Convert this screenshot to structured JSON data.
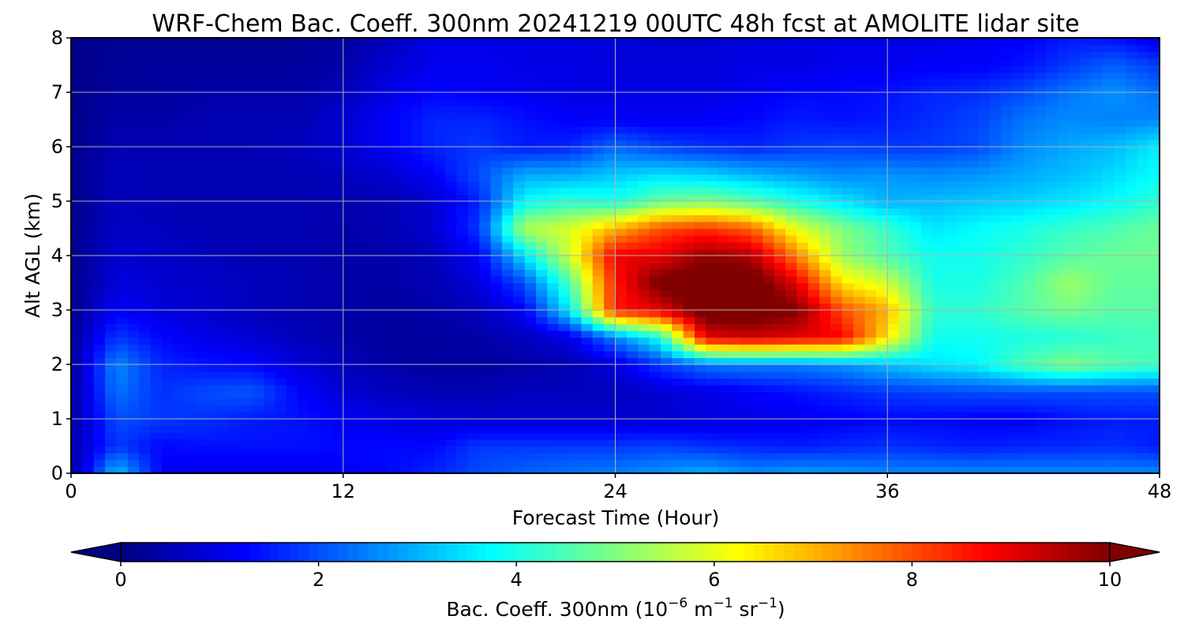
{
  "chart_data": {
    "type": "heatmap",
    "title": "WRF-Chem Bac. Coeff. 300nm  20241219 00UTC 48h fcst at AMOLITE lidar site",
    "xlabel": "Forecast Time (Hour)",
    "ylabel": "Alt AGL (km)",
    "xlim": [
      0,
      48
    ],
    "ylim": [
      0,
      8
    ],
    "x_ticks": [
      "0",
      "12",
      "24",
      "36",
      "48"
    ],
    "y_ticks": [
      "0",
      "1",
      "2",
      "3",
      "4",
      "5",
      "6",
      "7",
      "8"
    ],
    "grid": true,
    "colormap": "jet",
    "colorbar": {
      "label_main": "Bac. Coeff. 300nm  (10",
      "label_exp1": "−6",
      "label_mid": " m",
      "label_exp2": "−1",
      "label_mid2": " sr",
      "label_exp3": "−1",
      "label_end": ")",
      "range": [
        0,
        10
      ],
      "ticks": [
        "0",
        "2",
        "4",
        "6",
        "8",
        "10"
      ],
      "extend": "both",
      "orientation": "horizontal",
      "position": "bottom"
    },
    "x_hours": [
      0,
      2,
      4,
      6,
      8,
      10,
      12,
      14,
      16,
      18,
      20,
      22,
      24,
      26,
      28,
      30,
      32,
      34,
      36,
      38,
      40,
      42,
      44,
      46,
      48
    ],
    "y_km": [
      0,
      0.5,
      1,
      1.5,
      2,
      2.5,
      3,
      3.5,
      4,
      4.5,
      5,
      5.5,
      6,
      6.5,
      7,
      7.5,
      8
    ],
    "values_by_altitude": [
      [
        0.2,
        3.2,
        1.2,
        1.0,
        1.0,
        1.0,
        1.2,
        1.3,
        1.6,
        2.0,
        2.2,
        2.4,
        2.5,
        2.7,
        3.0,
        2.6,
        2.8,
        2.7,
        2.6,
        2.6,
        2.6,
        2.6,
        2.6,
        2.6,
        2.6
      ],
      [
        0.4,
        1.8,
        1.3,
        1.4,
        1.4,
        1.4,
        1.3,
        1.3,
        1.3,
        1.8,
        1.8,
        1.8,
        1.8,
        1.9,
        1.7,
        1.6,
        1.5,
        1.6,
        1.7,
        1.6,
        1.5,
        1.6,
        1.6,
        1.7,
        1.5
      ],
      [
        0.3,
        2.0,
        1.8,
        1.7,
        1.5,
        1.4,
        1.2,
        1.0,
        0.9,
        0.8,
        0.8,
        0.8,
        0.8,
        0.8,
        0.9,
        1.0,
        1.1,
        1.2,
        1.3,
        1.3,
        1.2,
        1.2,
        1.4,
        1.5,
        1.5
      ],
      [
        0.3,
        2.4,
        1.7,
        2.0,
        2.1,
        1.3,
        0.8,
        0.6,
        0.5,
        0.5,
        0.6,
        0.6,
        0.6,
        0.8,
        1.0,
        1.2,
        1.4,
        1.6,
        1.8,
        1.9,
        2.0,
        2.0,
        2.0,
        2.0,
        2.0
      ],
      [
        0.2,
        2.6,
        1.6,
        1.4,
        1.3,
        0.9,
        0.6,
        0.4,
        0.3,
        0.3,
        0.4,
        0.5,
        0.9,
        1.8,
        2.4,
        2.5,
        2.5,
        2.7,
        3.1,
        3.5,
        3.7,
        4.5,
        5.0,
        4.6,
        4.4
      ],
      [
        0.2,
        1.8,
        1.3,
        1.0,
        0.8,
        0.6,
        0.4,
        0.3,
        0.3,
        0.4,
        0.6,
        1.0,
        2.5,
        4.0,
        9.0,
        9.2,
        9.0,
        8.8,
        6.5,
        3.9,
        3.9,
        4.0,
        4.1,
        4.3,
        4.4
      ],
      [
        0.1,
        1.2,
        0.9,
        0.8,
        0.6,
        0.5,
        0.4,
        0.3,
        0.4,
        0.6,
        1.2,
        3.6,
        8.5,
        9.0,
        10.5,
        10.5,
        10.0,
        8.0,
        7.0,
        4.2,
        4.2,
        4.6,
        4.9,
        4.6,
        4.6
      ],
      [
        0.1,
        0.9,
        0.8,
        0.7,
        0.6,
        0.5,
        0.4,
        0.4,
        0.5,
        0.9,
        2.0,
        4.5,
        8.5,
        10.2,
        10.5,
        10.5,
        9.0,
        6.5,
        5.8,
        4.0,
        4.0,
        4.5,
        5.3,
        4.7,
        4.7
      ],
      [
        0.1,
        0.8,
        0.7,
        0.6,
        0.5,
        0.5,
        0.4,
        0.4,
        0.6,
        1.2,
        3.5,
        5.8,
        8.9,
        9.0,
        9.8,
        9.5,
        7.5,
        5.3,
        4.5,
        3.9,
        3.9,
        4.2,
        4.6,
        4.8,
        4.8
      ],
      [
        0.1,
        0.7,
        0.6,
        0.5,
        0.5,
        0.5,
        0.4,
        0.5,
        0.8,
        1.8,
        5.5,
        5.9,
        7.0,
        8.0,
        8.3,
        7.8,
        6.0,
        5.0,
        4.3,
        3.5,
        3.8,
        4.0,
        4.3,
        4.5,
        4.8
      ],
      [
        0.1,
        0.6,
        0.5,
        0.5,
        0.5,
        0.5,
        0.5,
        0.5,
        0.8,
        1.6,
        3.8,
        4.2,
        4.0,
        4.8,
        5.0,
        4.6,
        4.0,
        3.5,
        3.0,
        3.1,
        3.2,
        3.3,
        3.5,
        3.8,
        4.2
      ],
      [
        0.1,
        0.6,
        0.5,
        0.5,
        0.5,
        0.5,
        0.6,
        0.8,
        1.2,
        2.0,
        2.9,
        2.9,
        3.2,
        3.4,
        3.3,
        3.0,
        2.8,
        2.6,
        2.7,
        2.6,
        2.7,
        2.9,
        3.1,
        3.4,
        3.8
      ],
      [
        0.1,
        0.5,
        0.5,
        0.5,
        0.5,
        0.6,
        0.8,
        1.2,
        1.6,
        1.8,
        1.5,
        1.6,
        2.3,
        1.9,
        1.7,
        1.6,
        1.8,
        1.9,
        1.8,
        1.8,
        2.0,
        2.6,
        2.9,
        3.1,
        3.6
      ],
      [
        0.1,
        0.4,
        0.4,
        0.5,
        0.5,
        0.5,
        0.8,
        1.2,
        1.6,
        1.6,
        1.4,
        1.2,
        1.2,
        1.1,
        1.2,
        1.3,
        1.5,
        1.4,
        1.5,
        1.7,
        1.9,
        2.4,
        2.6,
        2.5,
        2.6
      ],
      [
        0.1,
        0.3,
        0.3,
        0.4,
        0.4,
        0.4,
        0.6,
        1.0,
        1.3,
        1.2,
        1.1,
        1.0,
        1.0,
        1.0,
        1.0,
        1.1,
        1.3,
        1.3,
        1.4,
        1.6,
        1.7,
        2.0,
        2.4,
        2.7,
        2.3
      ],
      [
        0.1,
        0.2,
        0.3,
        0.3,
        0.3,
        0.3,
        0.4,
        0.8,
        1.1,
        1.1,
        1.0,
        1.0,
        0.9,
        0.9,
        0.9,
        1.0,
        1.0,
        1.1,
        1.1,
        1.2,
        1.2,
        1.4,
        1.8,
        2.2,
        1.8
      ],
      [
        0.1,
        0.2,
        0.2,
        0.2,
        0.2,
        0.2,
        0.3,
        0.6,
        1.0,
        1.0,
        1.0,
        0.9,
        0.9,
        0.8,
        0.8,
        0.9,
        0.9,
        1.0,
        1.0,
        1.0,
        1.1,
        1.2,
        1.5,
        1.4,
        1.0
      ]
    ]
  }
}
